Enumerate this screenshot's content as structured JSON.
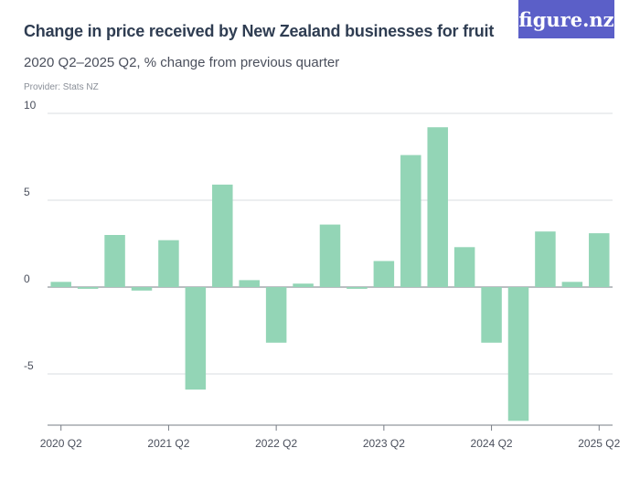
{
  "header": {
    "title": "Change in price received by New Zealand businesses for fruit",
    "subtitle": "2020 Q2–2025 Q2, % change from previous quarter",
    "provider": "Provider: Stats NZ",
    "logo_text": "figure.nz"
  },
  "colors": {
    "bar": "#93d5b6",
    "logo_bg": "#5b5fc8"
  },
  "chart_data": {
    "type": "bar",
    "title": "Change in price received by New Zealand businesses for fruit",
    "subtitle": "2020 Q2–2025 Q2, % change from previous quarter",
    "xlabel": "",
    "ylabel": "",
    "ylim": [
      -8,
      10
    ],
    "yticks": [
      10,
      5,
      0,
      -5
    ],
    "ytick_labels": [
      "10",
      "5",
      "0",
      "-5"
    ],
    "categories": [
      "2020 Q2",
      "2020 Q3",
      "2020 Q4",
      "2021 Q1",
      "2021 Q2",
      "2021 Q3",
      "2021 Q4",
      "2022 Q1",
      "2022 Q2",
      "2022 Q3",
      "2022 Q4",
      "2023 Q1",
      "2023 Q2",
      "2023 Q3",
      "2023 Q4",
      "2024 Q1",
      "2024 Q2",
      "2024 Q3",
      "2024 Q4",
      "2025 Q1",
      "2025 Q2"
    ],
    "xtick_labels": [
      "2020 Q2",
      "2021 Q2",
      "2022 Q2",
      "2023 Q2",
      "2024 Q2",
      "2025 Q2"
    ],
    "xtick_indices": [
      0,
      4,
      8,
      12,
      16,
      20
    ],
    "values": [
      0.3,
      -0.1,
      3.0,
      -0.2,
      2.7,
      -5.9,
      5.9,
      0.4,
      -3.2,
      0.2,
      3.6,
      -0.1,
      1.5,
      7.6,
      9.2,
      2.3,
      -3.2,
      -7.7,
      3.2,
      0.3,
      3.1
    ],
    "grid": true,
    "legend": "none"
  }
}
